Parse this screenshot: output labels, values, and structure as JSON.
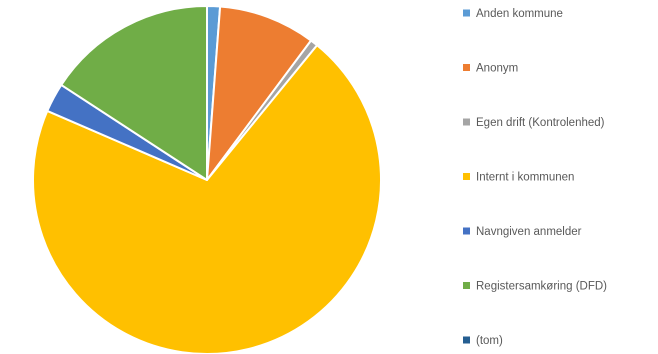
{
  "chart_data": {
    "type": "pie",
    "legend_position": "right",
    "slices": [
      {
        "label": "Anden kommune",
        "value": 1.2,
        "color": "#5B9BD5"
      },
      {
        "label": "Anonym",
        "value": 9.0,
        "color": "#ED7D31"
      },
      {
        "label": "Egen drift (Kontrolenhed)",
        "value": 0.7,
        "color": "#A5A5A5"
      },
      {
        "label": "Internt i kommunen",
        "value": 70.6,
        "color": "#FFC000"
      },
      {
        "label": "Navngiven anmelder",
        "value": 2.7,
        "color": "#4472C4"
      },
      {
        "label": "Registersamkøring (DFD)",
        "value": 15.8,
        "color": "#70AD47"
      },
      {
        "label": "(tom)",
        "value": 0.0,
        "color": "#255E91"
      }
    ]
  }
}
